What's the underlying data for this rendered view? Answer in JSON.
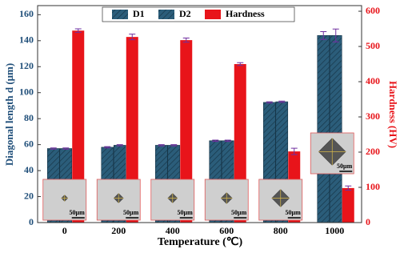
{
  "chart_data": {
    "type": "bar",
    "categories": [
      "0",
      "200",
      "400",
      "600",
      "800",
      "1000"
    ],
    "series": [
      {
        "name": "D1",
        "color": "#2b5d7a",
        "values": [
          57,
          58,
          59.5,
          63,
          92.5,
          144
        ],
        "errors": [
          0.5,
          0.5,
          0.5,
          0.5,
          0.5,
          3
        ]
      },
      {
        "name": "D2",
        "color": "#2b5d7a",
        "values": [
          57,
          59.5,
          59.5,
          63,
          93,
          144
        ],
        "errors": [
          0.5,
          0.5,
          0.5,
          0.5,
          0.5,
          5
        ]
      },
      {
        "name": "Hardness",
        "color": "#e8141a",
        "axis": "y2",
        "values": [
          545,
          527,
          518,
          450,
          202,
          98
        ],
        "errors": [
          5,
          8,
          6,
          4,
          9,
          6
        ]
      }
    ],
    "xlabel": "Temperature (℃)",
    "ylabel": "Diagonal length d (μm)",
    "y2label": "Hardness (HV)",
    "ylim": [
      0,
      167
    ],
    "yticks": [
      0,
      20,
      40,
      60,
      80,
      100,
      120,
      140,
      160
    ],
    "y2lim": [
      0,
      616
    ],
    "y2ticks": [
      0,
      100,
      200,
      300,
      400,
      500,
      600
    ],
    "inset_label": "50μm",
    "ycolor": "#1f4e79",
    "y2color": "#e8141a",
    "error_color": "#7030a0"
  }
}
